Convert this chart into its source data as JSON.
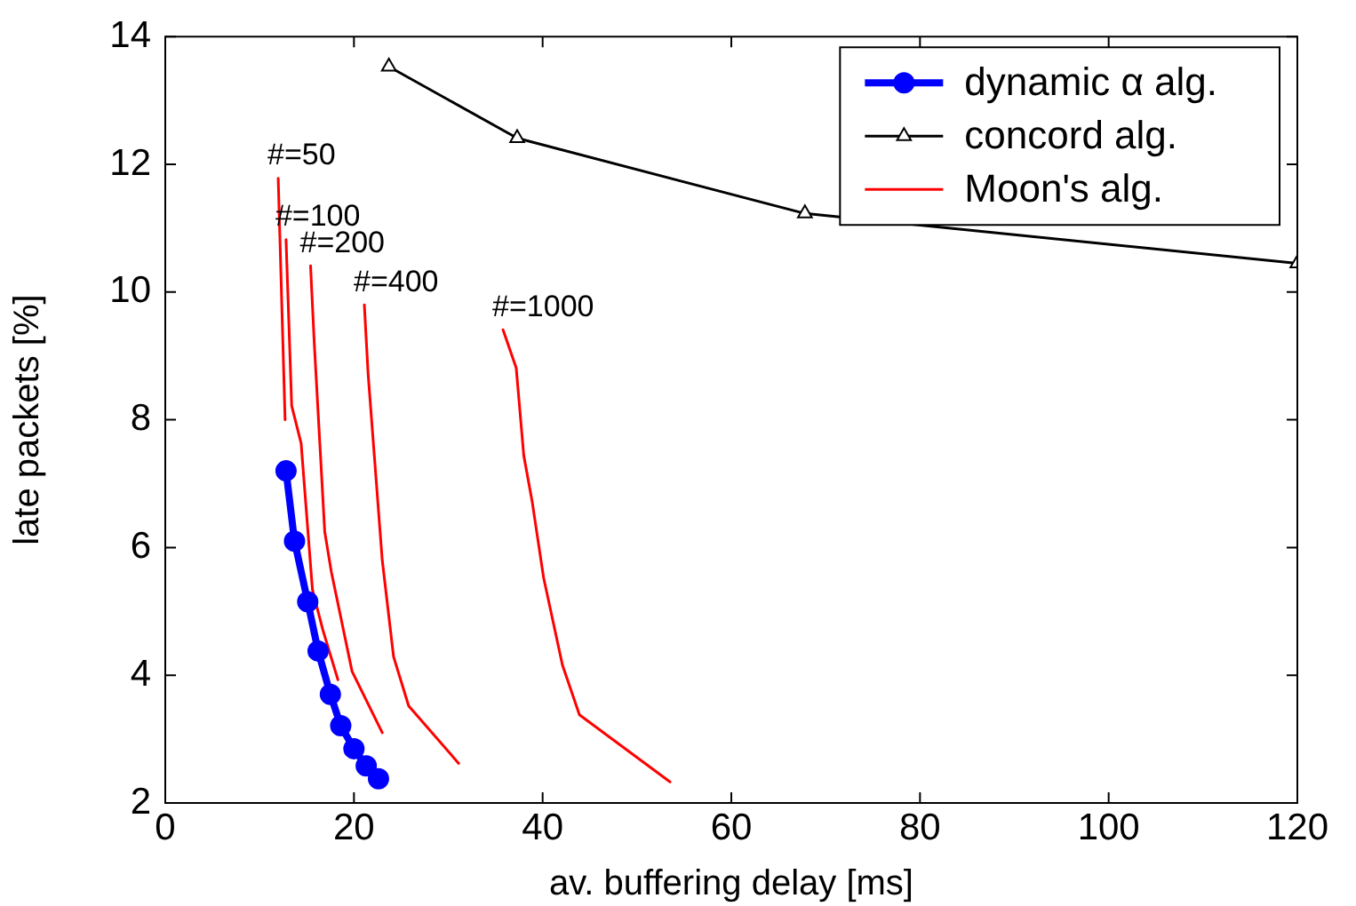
{
  "chart_data": {
    "type": "line",
    "xlabel": "av. buffering delay [ms]",
    "ylabel": "late packets [%]",
    "xlim": [
      0,
      120
    ],
    "xticks": [
      0,
      20,
      40,
      60,
      80,
      100,
      120
    ],
    "ylim": [
      2,
      14
    ],
    "yticks": [
      2,
      4,
      6,
      8,
      10,
      12,
      14
    ],
    "grid": false,
    "legend": "top right",
    "series": [
      {
        "name": "dynamic α alg.",
        "color": "#0000ff",
        "marker": "circle",
        "x": [
          12.8,
          13.7,
          15.1,
          16.2,
          17.5,
          18.6,
          20.0,
          21.3,
          22.6
        ],
        "values": [
          7.2,
          6.1,
          5.15,
          4.38,
          3.7,
          3.21,
          2.85,
          2.58,
          2.38
        ]
      },
      {
        "name": "concord alg.",
        "color": "#000000",
        "marker": "triangle",
        "x": [
          23.7,
          37.3,
          67.8,
          120
        ],
        "values": [
          13.53,
          12.41,
          11.23,
          10.45
        ]
      },
      {
        "name": "Moon's alg.",
        "color": "#ff0000",
        "marker": "none",
        "x": [
          11.97,
          12.7
        ],
        "values": [
          11.78,
          8.0
        ]
      },
      {
        "color": "#ff0000",
        "marker": "none",
        "x": [
          12.8,
          13.4,
          14.4,
          15.6,
          16.7,
          18.3
        ],
        "values": [
          10.82,
          8.22,
          7.63,
          5.34,
          4.71,
          3.93
        ]
      },
      {
        "color": "#ff0000",
        "marker": "none",
        "x": [
          15.4,
          15.8,
          16.9,
          17.6,
          19.8,
          23.0
        ],
        "values": [
          10.41,
          9.18,
          6.25,
          5.62,
          4.06,
          3.1
        ]
      },
      {
        "color": "#ff0000",
        "marker": "none",
        "x": [
          21.1,
          21.5,
          23.0,
          24.2,
          25.8,
          31.1
        ],
        "values": [
          9.8,
          8.72,
          5.8,
          4.29,
          3.52,
          2.62
        ]
      },
      {
        "color": "#ff0000",
        "marker": "none",
        "x": [
          35.8,
          37.2,
          38.0,
          38.9,
          40.1,
          42.1,
          43.9,
          53.5
        ],
        "values": [
          9.41,
          8.81,
          7.44,
          6.71,
          5.53,
          4.16,
          3.38,
          2.33
        ]
      }
    ],
    "annotations": [
      {
        "text": "#=50",
        "x": 11.97,
        "y": 11.78
      },
      {
        "text": "#=100",
        "x": 12.8,
        "y": 10.82
      },
      {
        "text": "#=200",
        "x": 15.4,
        "y": 10.41
      },
      {
        "text": "#=400",
        "x": 21.1,
        "y": 9.8
      },
      {
        "text": "#=1000",
        "x": 35.8,
        "y": 9.41
      }
    ]
  }
}
